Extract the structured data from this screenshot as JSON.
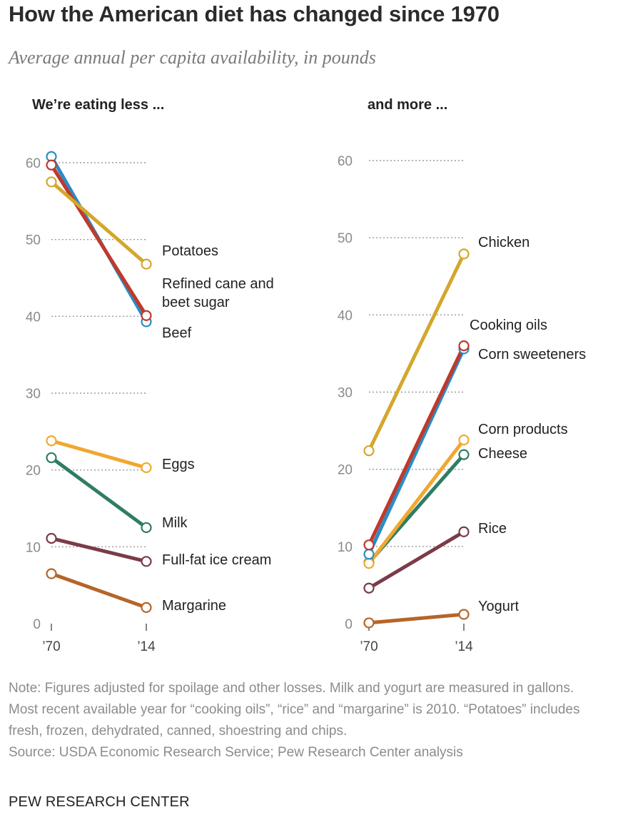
{
  "header": {
    "title": "How the American diet has changed since 1970",
    "subtitle": "Average annual per capita availability, in pounds"
  },
  "footer": {
    "note": "Note: Figures adjusted for spoilage and other losses. Milk and yogurt are measured in gallons. Most recent available year for “cooking oils”, “rice” and “margarine” is 2010. “Potatoes” includes fresh, frozen, dehydrated, canned, shoestring and chips.",
    "source": "Source: USDA Economic Research Service; Pew Research Center analysis",
    "brand": "PEW RESEARCH CENTER"
  },
  "chart_data": [
    {
      "type": "line",
      "title": "We’re eating less ...",
      "x": [
        "’70",
        "’14"
      ],
      "ylim": [
        0,
        60
      ],
      "yticks": [
        0,
        10,
        20,
        30,
        40,
        50,
        60
      ],
      "grid": true,
      "series": [
        {
          "name": "Potatoes",
          "values": [
            57.5,
            46.8
          ],
          "color": "#d4a72c",
          "label_lines": [
            "Potatoes"
          ]
        },
        {
          "name": "Refined cane and beet sugar",
          "values": [
            59.7,
            40.1
          ],
          "color": "#c0392b",
          "label_lines": [
            "Refined cane and",
            "beet sugar"
          ]
        },
        {
          "name": "Beef",
          "values": [
            60.8,
            39.3
          ],
          "color": "#2b8cc4",
          "label_lines": [
            "Beef"
          ]
        },
        {
          "name": "Eggs",
          "values": [
            23.8,
            20.3
          ],
          "color": "#f0a830",
          "label_lines": [
            "Eggs"
          ]
        },
        {
          "name": "Milk",
          "values": [
            21.6,
            12.5
          ],
          "color": "#2e7d64",
          "label_lines": [
            "Milk"
          ]
        },
        {
          "name": "Full-fat ice cream",
          "values": [
            11.1,
            8.1
          ],
          "color": "#7b3b48",
          "label_lines": [
            "Full-fat ice cream"
          ]
        },
        {
          "name": "Margarine",
          "values": [
            6.5,
            2.1
          ],
          "color": "#b5652a",
          "label_lines": [
            "Margarine"
          ]
        }
      ]
    },
    {
      "type": "line",
      "title": "and more ...",
      "x": [
        "’70",
        "’14"
      ],
      "ylim": [
        0,
        60
      ],
      "yticks": [
        0,
        10,
        20,
        30,
        40,
        50,
        60
      ],
      "grid": true,
      "series": [
        {
          "name": "Chicken",
          "values": [
            22.4,
            47.9
          ],
          "color": "#d4a72c",
          "label_lines": [
            "Chicken"
          ]
        },
        {
          "name": "Cooking oils",
          "values": [
            10.2,
            36.0
          ],
          "color": "#c0392b",
          "label_lines": [
            "Cooking oils"
          ]
        },
        {
          "name": "Corn sweeteners",
          "values": [
            9.0,
            35.6
          ],
          "color": "#2b8cc4",
          "label_lines": [
            "Corn sweeteners"
          ]
        },
        {
          "name": "Corn products",
          "values": [
            7.8,
            23.8
          ],
          "color": "#f0a830",
          "label_lines": [
            "Corn products"
          ]
        },
        {
          "name": "Cheese",
          "values": [
            7.9,
            21.9
          ],
          "color": "#2e7d64",
          "label_lines": [
            "Cheese"
          ]
        },
        {
          "name": "Rice",
          "values": [
            4.6,
            11.9
          ],
          "color": "#7b3b48",
          "label_lines": [
            "Rice"
          ]
        },
        {
          "name": "Yogurt",
          "values": [
            0.1,
            1.2
          ],
          "color": "#b5652a",
          "label_lines": [
            "Yogurt"
          ]
        }
      ]
    }
  ]
}
